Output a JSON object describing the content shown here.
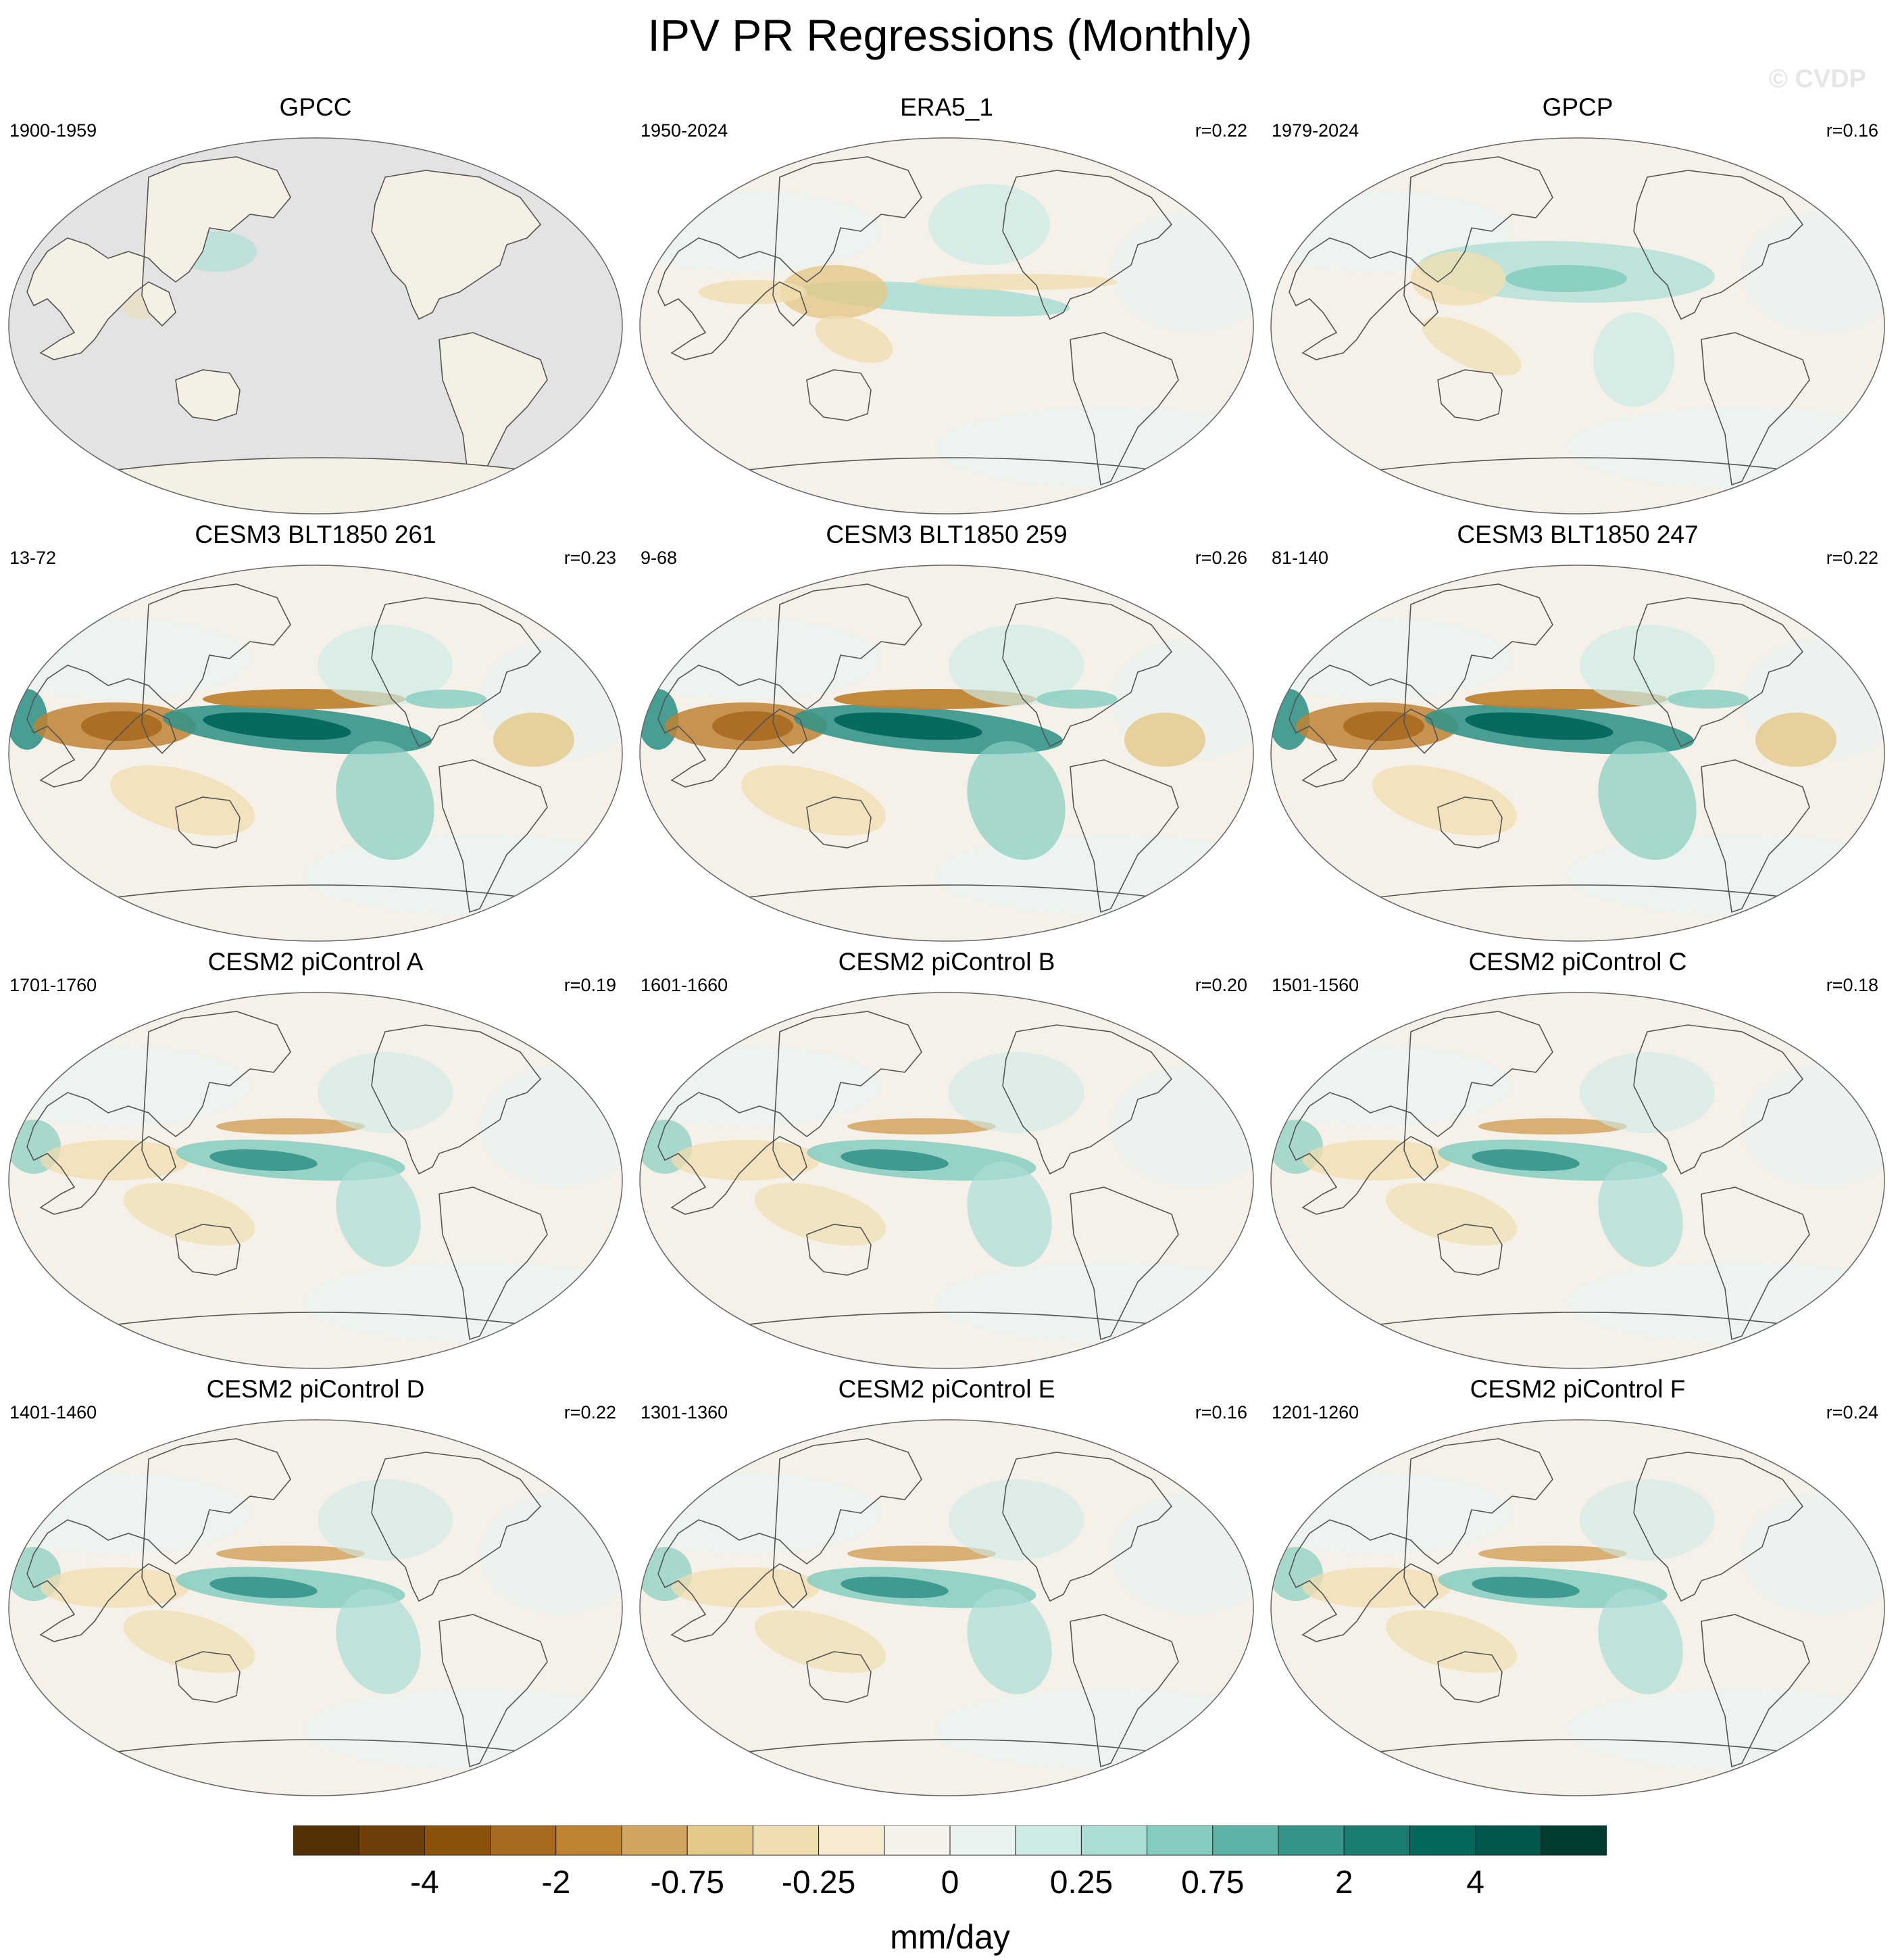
{
  "title": "IPV PR Regressions (Monthly)",
  "watermark": "© CVDP",
  "panels": [
    {
      "name": "GPCC",
      "period": "1900-1959",
      "r": "",
      "pattern": "gpcc"
    },
    {
      "name": "ERA5_1",
      "period": "1950-2024",
      "r": "r=0.22",
      "pattern": "era5"
    },
    {
      "name": "GPCP",
      "period": "1979-2024",
      "r": "r=0.16",
      "pattern": "gpcp"
    },
    {
      "name": "CESM3 BLT1850 261",
      "period": "13-72",
      "r": "r=0.23",
      "pattern": "strong"
    },
    {
      "name": "CESM3 BLT1850 259",
      "period": "9-68",
      "r": "r=0.26",
      "pattern": "strong"
    },
    {
      "name": "CESM3 BLT1850 247",
      "period": "81-140",
      "r": "r=0.22",
      "pattern": "strong"
    },
    {
      "name": "CESM2 piControl A",
      "period": "1701-1760",
      "r": "r=0.19",
      "pattern": "moderate"
    },
    {
      "name": "CESM2 piControl B",
      "period": "1601-1660",
      "r": "r=0.20",
      "pattern": "moderate"
    },
    {
      "name": "CESM2 piControl C",
      "period": "1501-1560",
      "r": "r=0.18",
      "pattern": "moderate"
    },
    {
      "name": "CESM2 piControl D",
      "period": "1401-1460",
      "r": "r=0.22",
      "pattern": "moderate"
    },
    {
      "name": "CESM2 piControl E",
      "period": "1301-1360",
      "r": "r=0.16",
      "pattern": "moderate"
    },
    {
      "name": "CESM2 piControl F",
      "period": "1201-1260",
      "r": "r=0.24",
      "pattern": "moderate"
    }
  ],
  "colorbar": {
    "colors": [
      "#543005",
      "#6f3f0a",
      "#8c510a",
      "#a86a20",
      "#bf8233",
      "#d2a55f",
      "#e4c888",
      "#f0deb0",
      "#f6ead0",
      "#f5f2ea",
      "#e9f3f1",
      "#cfebe6",
      "#a9ddd5",
      "#86cdc1",
      "#5cb3a6",
      "#35958a",
      "#1b7d72",
      "#04675c",
      "#00574b",
      "#003c30"
    ],
    "tick_labels": [
      "-4",
      "-2",
      "-0.75",
      "-0.25",
      "0",
      "0.25",
      "0.75",
      "2",
      "4"
    ],
    "units": "mm/day"
  },
  "style": {
    "land_mask_color": "#e3e3e3",
    "coast_color": "#555555"
  }
}
